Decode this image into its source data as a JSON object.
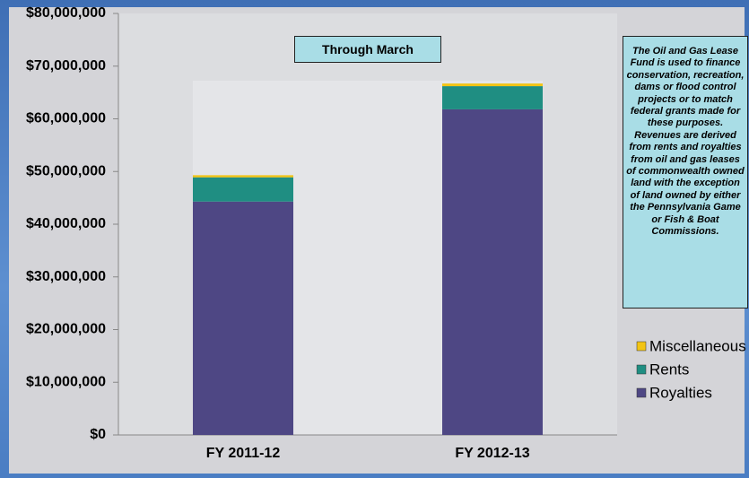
{
  "chart_data": {
    "type": "stacked_bar",
    "categories": [
      "FY 2011-12",
      "FY 2012-13"
    ],
    "series": [
      {
        "name": "Royalties",
        "color": "#4e4784",
        "values": [
          44300000,
          61800000
        ]
      },
      {
        "name": "Rents",
        "color": "#1f8e82",
        "values": [
          4600000,
          4400000
        ]
      },
      {
        "name": "Miscellaneous",
        "color": "#f2c414",
        "values": [
          400000,
          500000
        ]
      }
    ],
    "ylim": [
      0,
      80000000
    ],
    "yticks": [
      {
        "value": 0,
        "label": "$0"
      },
      {
        "value": 10000000,
        "label": "$10,000,000"
      },
      {
        "value": 20000000,
        "label": "$20,000,000"
      },
      {
        "value": 30000000,
        "label": "$30,000,000"
      },
      {
        "value": 40000000,
        "label": "$40,000,000"
      },
      {
        "value": 50000000,
        "label": "$50,000,000"
      },
      {
        "value": 60000000,
        "label": "$60,000,000"
      },
      {
        "value": 70000000,
        "label": "$70,000,000"
      },
      {
        "value": 80000000,
        "label": "$80,000,000"
      }
    ],
    "annotations": [
      "Through March",
      "The Oil and Gas Lease Fund is used to finance conservation, recreation, dams or flood control projects or to match federal grants made for these purposes. Revenues are derived from rents and royalties from oil and gas leases of commonwealth owned land with the exception of land owned by either the Pennsylvania Game or Fish & Boat Commissions."
    ],
    "legend": "right"
  }
}
